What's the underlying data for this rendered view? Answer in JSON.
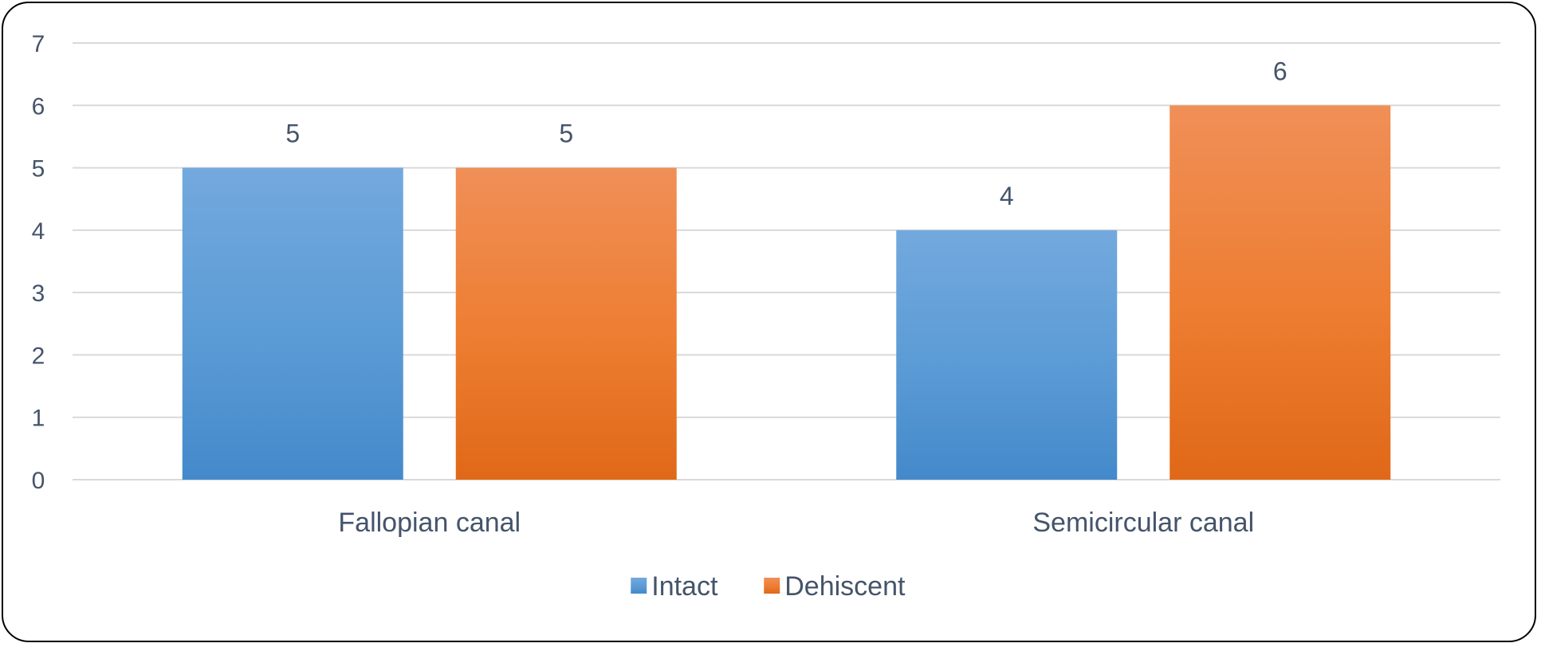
{
  "chart_data": {
    "type": "bar",
    "categories": [
      "Fallopian canal",
      "Semicircular canal"
    ],
    "series": [
      {
        "name": "Intact",
        "values": [
          5,
          4
        ],
        "color": "#5b9bd5",
        "color_light": "#73a9de",
        "color_dark": "#4489cb"
      },
      {
        "name": "Dehiscent",
        "values": [
          5,
          6
        ],
        "color": "#ed7d31",
        "color_light": "#f08f58",
        "color_dark": "#e06818"
      }
    ],
    "title": "",
    "xlabel": "",
    "ylabel": "",
    "ylim": [
      0,
      7
    ],
    "yticks": [
      "0",
      "1",
      "2",
      "3",
      "4",
      "5",
      "6",
      "7"
    ],
    "grid": true,
    "data_labels": true,
    "legend_position": "bottom"
  }
}
